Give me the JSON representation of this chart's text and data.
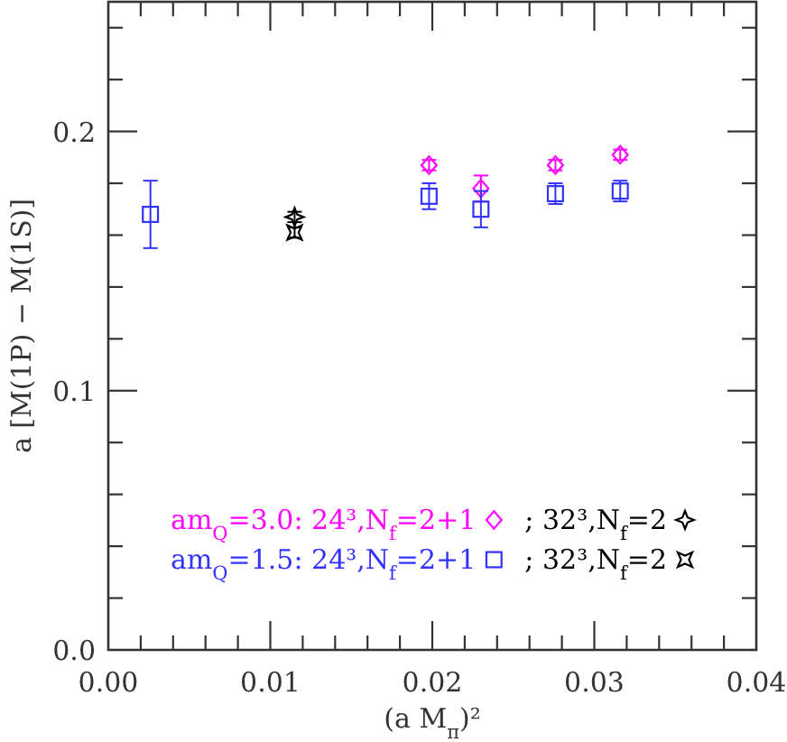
{
  "chart_data": {
    "type": "scatter",
    "xlabel": "(a M$_{π}$)²",
    "ylabel": "a [M(1P) − M(1S)]",
    "xlim": [
      0,
      0.04
    ],
    "ylim": [
      0,
      0.25
    ],
    "xticks": [
      {
        "value": 0,
        "label": "0.00"
      },
      {
        "value": 0.002,
        "label": null
      },
      {
        "value": 0.004,
        "label": null
      },
      {
        "value": 0.006,
        "label": null
      },
      {
        "value": 0.008,
        "label": null
      },
      {
        "value": 0.01,
        "label": "0.01"
      },
      {
        "value": 0.012,
        "label": null
      },
      {
        "value": 0.014,
        "label": null
      },
      {
        "value": 0.016,
        "label": null
      },
      {
        "value": 0.018,
        "label": null
      },
      {
        "value": 0.02,
        "label": "0.02"
      },
      {
        "value": 0.022,
        "label": null
      },
      {
        "value": 0.024,
        "label": null
      },
      {
        "value": 0.026,
        "label": null
      },
      {
        "value": 0.028,
        "label": null
      },
      {
        "value": 0.03,
        "label": "0.03"
      },
      {
        "value": 0.032,
        "label": null
      },
      {
        "value": 0.034,
        "label": null
      },
      {
        "value": 0.036,
        "label": null
      },
      {
        "value": 0.038,
        "label": null
      },
      {
        "value": 0.04,
        "label": "0.04"
      }
    ],
    "yticks": [
      {
        "value": 0,
        "label": "0.0"
      },
      {
        "value": 0.02,
        "label": null
      },
      {
        "value": 0.04,
        "label": null
      },
      {
        "value": 0.06,
        "label": null
      },
      {
        "value": 0.08,
        "label": null
      },
      {
        "value": 0.1,
        "label": "0.1"
      },
      {
        "value": 0.12,
        "label": null
      },
      {
        "value": 0.14,
        "label": null
      },
      {
        "value": 0.16,
        "label": null
      },
      {
        "value": 0.18,
        "label": null
      },
      {
        "value": 0.2,
        "label": "0.2"
      },
      {
        "value": 0.22,
        "label": null
      },
      {
        "value": 0.24,
        "label": null
      }
    ],
    "legend": "bottom",
    "series": [
      {
        "name": "am$_{Q}$=3.0: 24³,N$_{f}$=2+1",
        "color": "#ff00ff",
        "marker": "diamond",
        "x": [
          0.0198,
          0.023,
          0.0276,
          0.0316
        ],
        "values": [
          0.187,
          0.178,
          0.187,
          0.191
        ],
        "errors": [
          0.002,
          0.005,
          0.002,
          0.002
        ]
      },
      {
        "name": "; 32³,N$_{f}$=2",
        "color": "#000000",
        "marker": "star",
        "x": [
          0.0115
        ],
        "values": [
          0.167
        ],
        "errors": [
          0.002
        ]
      },
      {
        "name": "am$_{Q}$=1.5: 24³,N$_{f}$=2+1",
        "color": "#3333ff",
        "marker": "square",
        "x": [
          0.0026,
          0.0198,
          0.023,
          0.0276,
          0.0316
        ],
        "values": [
          0.168,
          0.175,
          0.17,
          0.176,
          0.177
        ],
        "errors": [
          0.013,
          0.005,
          0.007,
          0.004,
          0.004
        ]
      },
      {
        "name": "; 32³,N$_{f}$=2",
        "color": "#000000",
        "marker": "cross",
        "x": [
          0.0115
        ],
        "values": [
          0.161
        ],
        "errors": [
          0.002
        ]
      }
    ]
  }
}
